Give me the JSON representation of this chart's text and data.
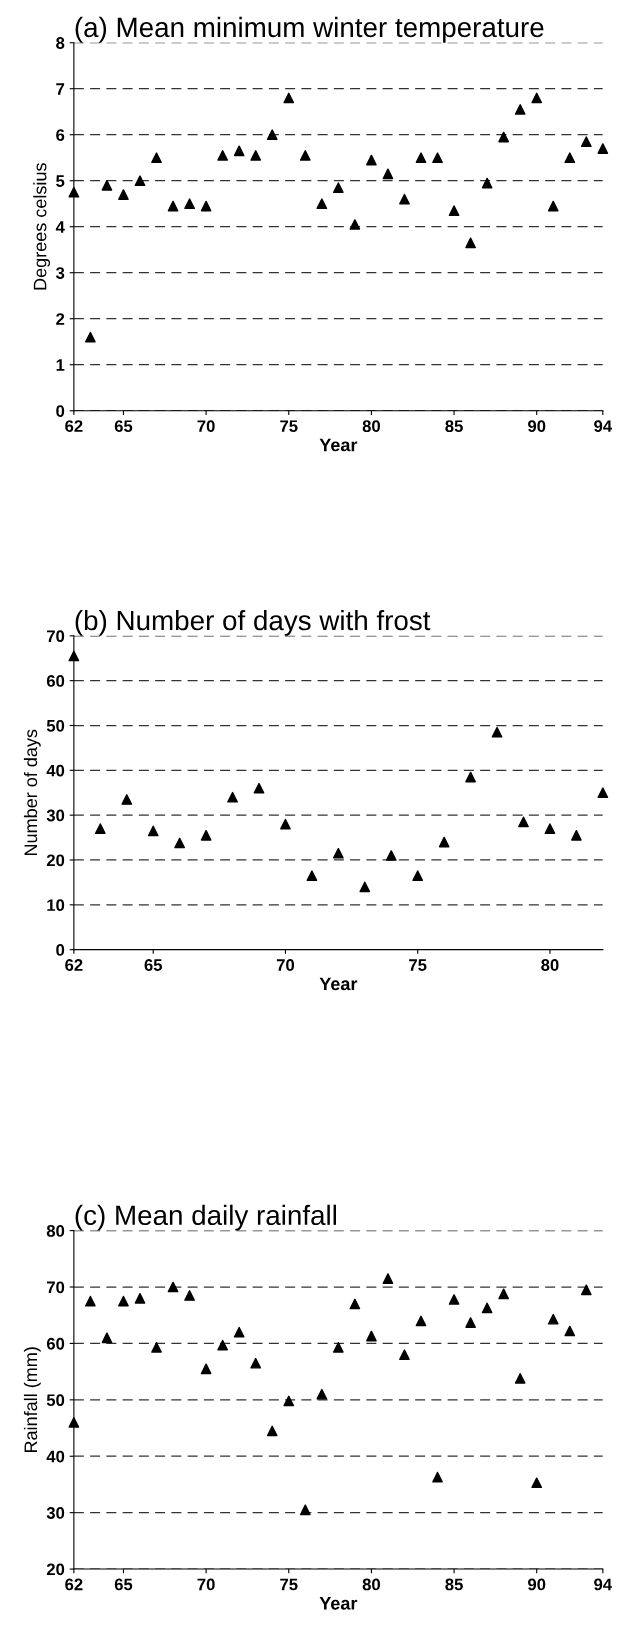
{
  "chart_data": [
    {
      "type": "scatter",
      "title": "(a) Mean minimum winter temperature",
      "xlabel": "Year",
      "ylabel": "Degrees celsius",
      "x": [
        62,
        63,
        64,
        65,
        66,
        67,
        68,
        69,
        70,
        71,
        72,
        73,
        74,
        75,
        76,
        77,
        78,
        79,
        80,
        81,
        82,
        83,
        84,
        85,
        86,
        87,
        88,
        89,
        90,
        91,
        92,
        93,
        94
      ],
      "values": [
        4.75,
        1.6,
        4.9,
        4.7,
        5.0,
        5.5,
        4.45,
        4.5,
        4.45,
        5.55,
        5.65,
        5.55,
        6.0,
        6.8,
        5.55,
        4.5,
        4.85,
        4.05,
        5.45,
        5.15,
        4.6,
        5.5,
        5.5,
        4.35,
        3.65,
        4.95,
        5.95,
        6.55,
        6.8,
        4.45,
        5.5,
        5.85,
        5.7
      ],
      "color": "#000000",
      "marker": "triangle",
      "grid": "y",
      "xlim": [
        62,
        94
      ],
      "xticks": [
        62,
        65,
        70,
        75,
        80,
        85,
        90,
        94
      ],
      "ylim": [
        0,
        8
      ],
      "yticks": [
        0,
        1,
        2,
        3,
        4,
        5,
        6,
        7,
        8
      ]
    },
    {
      "type": "scatter",
      "title": "(b) Number of days with frost",
      "xlabel": "Year",
      "ylabel": "Number of days",
      "x": [
        62,
        63,
        64,
        65,
        66,
        67,
        68,
        69,
        70,
        71,
        72,
        73,
        74,
        75,
        76,
        77,
        78,
        79,
        80,
        81,
        82
      ],
      "values": [
        65.5,
        27,
        33.5,
        26.5,
        23.8,
        25.5,
        34,
        36,
        28,
        16.5,
        21.5,
        14,
        21,
        16.5,
        24,
        38.5,
        48.5,
        28.5,
        27,
        25.5,
        35
      ],
      "color": "#000000",
      "marker": "triangle",
      "grid": "y",
      "xlim": [
        62,
        82
      ],
      "xticks": [
        62,
        65,
        70,
        75,
        80
      ],
      "ylim": [
        0,
        70
      ],
      "yticks": [
        0,
        10,
        20,
        30,
        40,
        50,
        60,
        70
      ]
    },
    {
      "type": "scatter",
      "title": "(c) Mean daily rainfall",
      "xlabel": "Year",
      "ylabel": "Rainfall (mm)",
      "x": [
        62,
        63,
        64,
        65,
        66,
        67,
        68,
        69,
        70,
        71,
        72,
        73,
        74,
        75,
        76,
        77,
        78,
        79,
        80,
        81,
        82,
        83,
        84,
        85,
        86,
        87,
        88,
        89,
        90,
        91,
        92,
        93
      ],
      "values": [
        46,
        67.5,
        61,
        67.5,
        68,
        59.3,
        70,
        68.5,
        55.5,
        59.7,
        62,
        56.5,
        44.5,
        49.8,
        30.5,
        51,
        59.3,
        67,
        61.3,
        71.5,
        58,
        64,
        36.3,
        67.8,
        63.7,
        66.3,
        68.8,
        53.8,
        35.3,
        64.3,
        62.2,
        69.5
      ],
      "color": "#000000",
      "marker": "triangle",
      "grid": "y",
      "xlim": [
        62,
        94
      ],
      "xticks": [
        62,
        65,
        70,
        75,
        80,
        85,
        90,
        94
      ],
      "ylim": [
        20,
        80
      ],
      "yticks": [
        20,
        30,
        40,
        50,
        60,
        70,
        80
      ]
    }
  ]
}
